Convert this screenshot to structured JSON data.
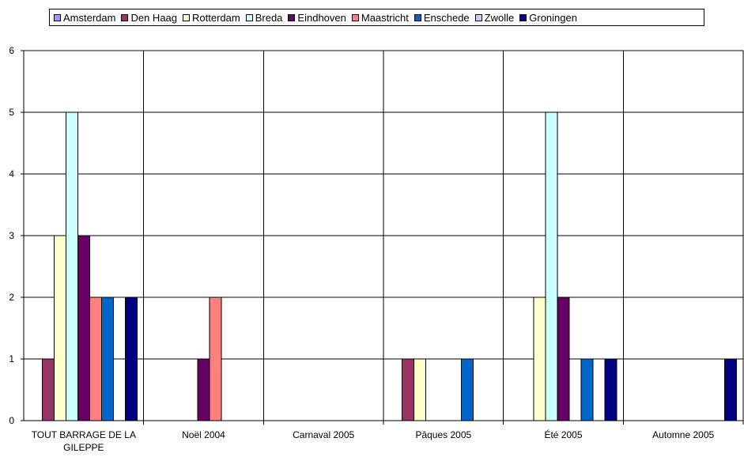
{
  "chart_data": {
    "type": "bar",
    "categories": [
      "TOUT BARRAGE DE LA GILEPPE",
      "Noël 2004",
      "Carnaval 2005",
      "Pâques 2005",
      "Été 2005",
      "Automne 2005"
    ],
    "ylim": [
      0,
      6
    ],
    "yticks": [
      0,
      1,
      2,
      3,
      4,
      5,
      6
    ],
    "grid": true,
    "legend_position": "top",
    "series": [
      {
        "name": "Amsterdam",
        "color": "#9999FF",
        "values": [
          0,
          0,
          0,
          0,
          0,
          0
        ]
      },
      {
        "name": "Den Haag",
        "color": "#993366",
        "values": [
          1,
          0,
          0,
          1,
          0,
          0
        ]
      },
      {
        "name": "Rotterdam",
        "color": "#FFFFCC",
        "values": [
          3,
          0,
          0,
          1,
          2,
          0
        ]
      },
      {
        "name": "Breda",
        "color": "#CCFFFF",
        "values": [
          5,
          0,
          0,
          0,
          5,
          0
        ]
      },
      {
        "name": "Eindhoven",
        "color": "#660066",
        "values": [
          3,
          1,
          0,
          0,
          2,
          0
        ]
      },
      {
        "name": "Maastricht",
        "color": "#FF8080",
        "values": [
          2,
          2,
          0,
          0,
          0,
          0
        ]
      },
      {
        "name": "Enschede",
        "color": "#0066CC",
        "values": [
          2,
          0,
          0,
          1,
          1,
          0
        ]
      },
      {
        "name": "Zwolle",
        "color": "#CCCCFF",
        "values": [
          0,
          0,
          0,
          0,
          0,
          0
        ]
      },
      {
        "name": "Groningen",
        "color": "#000080",
        "values": [
          2,
          0,
          0,
          0,
          1,
          1
        ]
      }
    ]
  }
}
